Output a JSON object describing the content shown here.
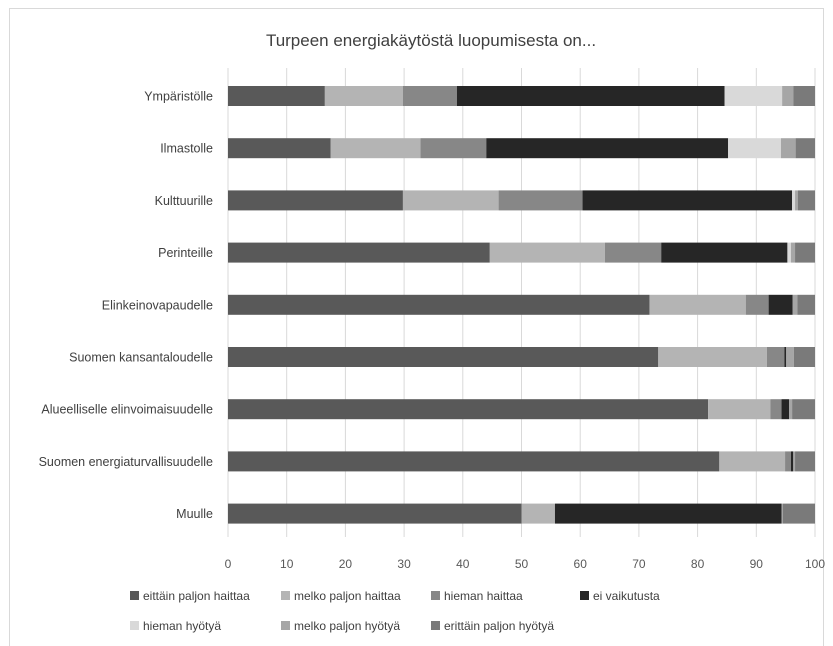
{
  "chart_data": {
    "type": "bar",
    "orientation": "horizontal",
    "stacked": true,
    "title": "Turpeen energiakäytöstä luopumisesta on...",
    "xlabel": "",
    "ylabel": "",
    "xlim": [
      0,
      100
    ],
    "xticks": [
      "0",
      "10",
      "20",
      "30",
      "40",
      "50",
      "60",
      "70",
      "80",
      "90",
      "100"
    ],
    "grid": "vertical",
    "legend_position": "bottom",
    "categories": [
      "Ympäristölle",
      "Ilmastolle",
      "Kulttuurille",
      "Perinteille",
      "Elinkeinovapaudelle",
      "Suomen kansantaloudelle",
      "Alueelliselle elinvoimaisuudelle",
      "Suomen energiaturvallisuudelle",
      "Muulle"
    ],
    "series": [
      {
        "name": "eittäin paljon haittaa",
        "color": "#595959",
        "values": [
          16.5,
          17.5,
          29.8,
          44.6,
          71.8,
          73.3,
          81.8,
          83.7,
          50.0
        ]
      },
      {
        "name": "melko paljon haittaa",
        "color": "#b4b4b4",
        "values": [
          13.3,
          15.3,
          16.3,
          19.6,
          16.4,
          18.5,
          10.6,
          11.2,
          5.7
        ]
      },
      {
        "name": "hieman haittaa",
        "color": "#878787",
        "values": [
          9.2,
          11.2,
          14.3,
          9.6,
          3.9,
          3.0,
          1.9,
          1.0,
          0.0
        ]
      },
      {
        "name": "ei vaikutusta",
        "color": "#262626",
        "values": [
          45.6,
          41.2,
          35.7,
          21.5,
          4.1,
          0.3,
          1.3,
          0.4,
          38.6
        ]
      },
      {
        "name": "hieman hyötyä",
        "color": "#d9d9d9",
        "values": [
          9.8,
          9.0,
          0.5,
          0.6,
          0.0,
          0.0,
          0.0,
          0.0,
          0.0
        ]
      },
      {
        "name": "melko paljon hyötyä",
        "color": "#a6a6a6",
        "values": [
          1.9,
          2.5,
          0.5,
          0.7,
          0.8,
          1.3,
          0.5,
          0.3,
          0.2
        ]
      },
      {
        "name": "erittäin paljon hyötyä",
        "color": "#7a7a7a",
        "values": [
          3.7,
          3.3,
          2.9,
          3.4,
          3.0,
          3.6,
          3.9,
          3.4,
          5.5
        ]
      }
    ]
  }
}
